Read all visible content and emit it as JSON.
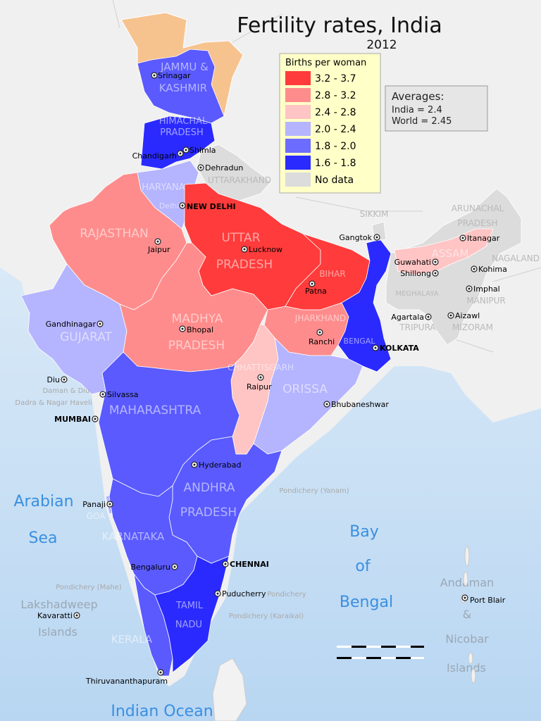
{
  "title": "Fertility rates, India",
  "year": "2012",
  "legend": {
    "title": "Births per woman",
    "items": [
      {
        "label": "3.2 - 3.7",
        "color": "#ff3b3b"
      },
      {
        "label": "2.8 - 3.2",
        "color": "#ff8c8c"
      },
      {
        "label": "2.4 - 2.8",
        "color": "#ffc4c4"
      },
      {
        "label": "2.0 - 2.4",
        "color": "#b4b4ff"
      },
      {
        "label": "1.8 - 2.0",
        "color": "#6c6cff"
      },
      {
        "label": "1.6 - 1.8",
        "color": "#2a2aff"
      },
      {
        "label": "No data",
        "color": "#dcdcdc"
      }
    ]
  },
  "averages": {
    "heading": "Averages:",
    "india": "India = 2.4",
    "world": "World = 2.45"
  },
  "seas": {
    "arabian_1": "Arabian",
    "arabian_2": "Sea",
    "bay_1": "Bay",
    "bay_2": "of",
    "bay_3": "Bengal",
    "indian_ocean": "Indian Ocean"
  },
  "islands": {
    "lakshadweep_1": "Lakshadweep",
    "lakshadweep_2": "Islands",
    "andaman_1": "Andaman",
    "andaman_2": "&",
    "andaman_3": "Nicobar",
    "andaman_4": "Islands"
  },
  "states": {
    "jk_1": "JAMMU &",
    "jk_2": "KASHMIR",
    "hp_1": "HIMACHAL",
    "hp_2": "PRADESH",
    "haryana": "HARYANA",
    "delhi": "Delhi",
    "uttarakhand": "UTTARAKHAND",
    "rajasthan": "RAJASTHAN",
    "up_1": "UTTAR",
    "up_2": "PRADESH",
    "bihar": "BIHAR",
    "jharkhand": "JHARKHAND",
    "wb": "BENGAL",
    "gujarat": "GUJARAT",
    "mp_1": "MADHYA",
    "mp_2": "PRADESH",
    "chhattisgarh": "CHHATTISGARH",
    "orissa": "ORISSA",
    "maharashtra": "MAHARASHTRA",
    "ap_1": "ANDHRA",
    "ap_2": "PRADESH",
    "goa": "GOA",
    "karnataka": "KARNATAKA",
    "kerala": "KERALA",
    "tn_1": "TAMIL",
    "tn_2": "NADU",
    "sikkim": "SIKKIM",
    "arunachal_1": "ARUNACHAL",
    "arunachal_2": "PRADESH",
    "assam": "ASSAM",
    "nagaland": "NAGALAND",
    "meghalaya": "MEGHALAYA",
    "manipur": "MANIPUR",
    "tripura": "TRIPURA",
    "mizoram": "MIZORAM"
  },
  "union_territories": {
    "daman": "Daman & Diu",
    "dadra": "Dadra & Nagar Haveli",
    "yanam": "Pondichery (Yanam)",
    "mahe": "Pondichery (Mahe)",
    "pondy": "Pondichery",
    "karaikal": "Pondichery (Karaikal)"
  },
  "cities": {
    "srinagar": "Srinagar",
    "shimla": "Shimla",
    "chandigarh": "Chandigarh",
    "dehradun": "Dehradun",
    "new_delhi": "NEW DELHI",
    "jaipur": "Jaipur",
    "lucknow": "Lucknow",
    "patna": "Patna",
    "gangtok": "Gangtok",
    "itanagar": "Itanagar",
    "guwahati": "Guwahati",
    "shillong": "Shillong",
    "kohima": "Kohima",
    "imphal": "Imphal",
    "agartala": "Agartala",
    "aizawl": "Aizawl",
    "ranchi": "Ranchi",
    "kolkata": "KOLKATA",
    "gandhinagar": "Gandhinagar",
    "bhopal": "Bhopal",
    "raipur": "Raipur",
    "bhubaneshwar": "Bhubaneshwar",
    "diu": "Diu",
    "silvassa": "Silvassa",
    "mumbai": "MUMBAI",
    "hyderabad": "Hyderabad",
    "panaji": "Panaji",
    "bengaluru": "Bengaluru",
    "chennai": "CHENNAI",
    "puducherry": "Puducherry",
    "kavaratti": "Kavaratti",
    "thiruvananthapuram": "Thiruvananthapuram",
    "port_blair": "Port Blair"
  }
}
